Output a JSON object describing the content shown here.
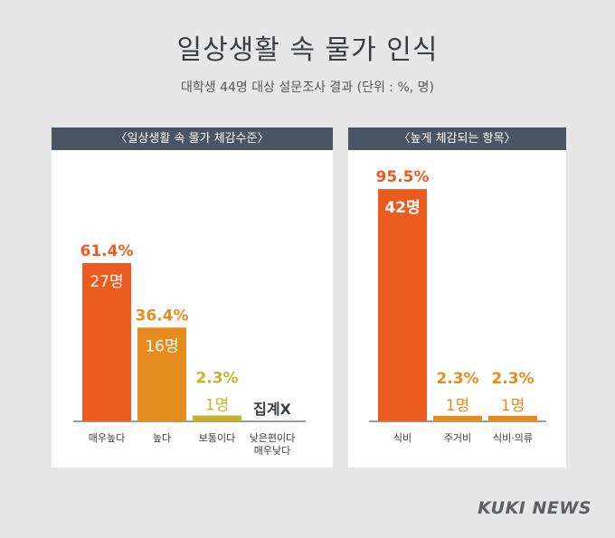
{
  "title": "일상생활 속 물가 인식",
  "subtitle": "대학생 44명 대상 설문조사 결과 (단위 : %, 명)",
  "brand": "KUKI NEWS",
  "colors": {
    "orange": "#ec5b1f",
    "amber": "#e48d1e",
    "gold": "#c8b22a",
    "background": "#e7e7e7",
    "header": "#4a5563"
  },
  "chart_data": [
    {
      "type": "bar",
      "title": "〈일상생활 속 물가 체감수준〉",
      "categories": [
        "매우높다",
        "높다",
        "보통이다",
        "낮은편이다\n매우낮다"
      ],
      "values": [
        61.4,
        36.4,
        2.3,
        null
      ],
      "counts": [
        "27명",
        "16명",
        "1명",
        null
      ],
      "value_labels": [
        "61.4%",
        "36.4%",
        "2.3%",
        null
      ],
      "note": "집계X",
      "colors": [
        "#ec5b1f",
        "#e48d1e",
        "#c8b22a",
        null
      ],
      "ylim": [
        0,
        100
      ]
    },
    {
      "type": "bar",
      "title": "〈높게 체감되는 항목〉",
      "categories": [
        "식비",
        "주거비",
        "식비·의류"
      ],
      "values": [
        95.5,
        2.3,
        2.3
      ],
      "counts": [
        "42명",
        "1명",
        "1명"
      ],
      "value_labels": [
        "95.5%",
        "2.3%",
        "2.3%"
      ],
      "colors": [
        "#ec5b1f",
        "#e48d1e",
        "#e48d1e"
      ],
      "ylim": [
        0,
        100
      ]
    }
  ]
}
